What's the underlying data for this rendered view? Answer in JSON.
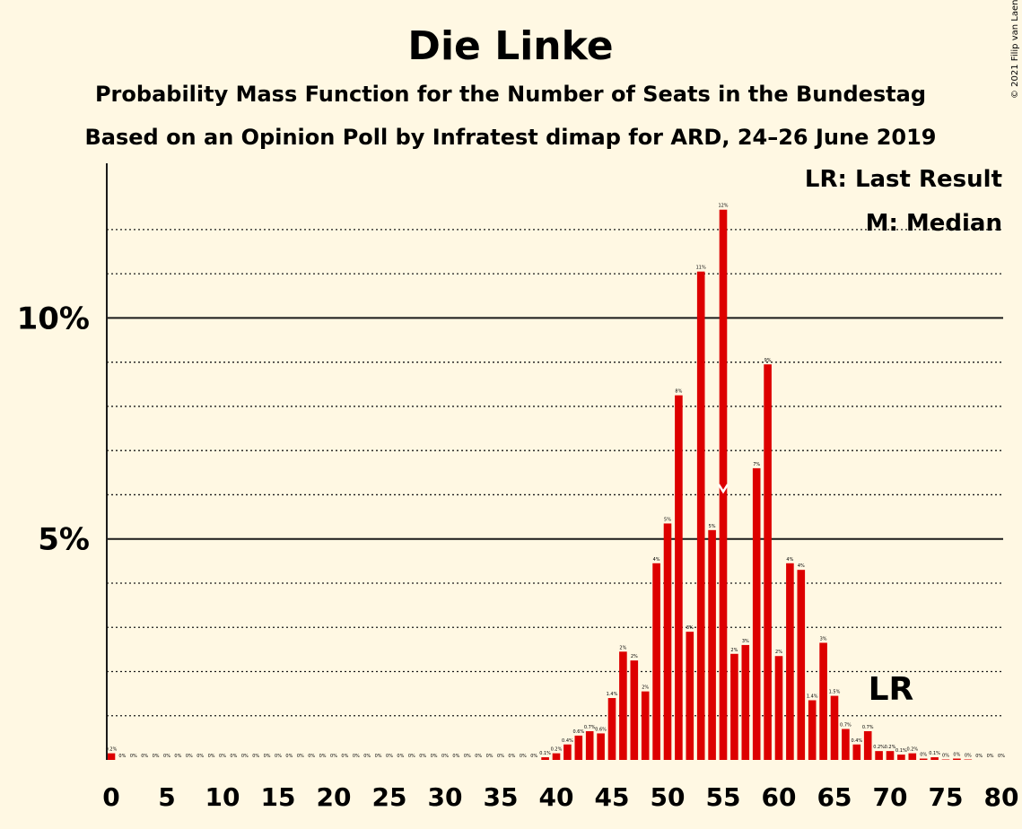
{
  "chart_data": {
    "type": "bar",
    "title": "Die Linke",
    "subtitle": "Probability Mass Function for the Number of Seats in the Bundestag",
    "subtitle2": "Based on an Opinion Poll by Infratest dimap for ARD, 24–26 June 2019",
    "copyright": "© 2021 Filip van Laenen",
    "legend": [
      "LR: Last Result",
      "M: Median"
    ],
    "legend_placement": "top-right",
    "ylim": [
      0,
      13.5
    ],
    "yticks": [
      {
        "value": 5,
        "label": "5%"
      },
      {
        "value": 10,
        "label": "10%"
      }
    ],
    "xticks": [
      0,
      5,
      10,
      15,
      20,
      25,
      30,
      35,
      40,
      45,
      50,
      55,
      60,
      65,
      70,
      75,
      80
    ],
    "grid": "dotted every 1%, solid at 5% and 10%",
    "bar_color": "#DD0000",
    "median_seat": 55,
    "last_result_seat": 69,
    "last_result_label": "LR",
    "x": [
      0,
      1,
      2,
      3,
      4,
      5,
      6,
      7,
      8,
      9,
      10,
      11,
      12,
      13,
      14,
      15,
      16,
      17,
      18,
      19,
      20,
      21,
      22,
      23,
      24,
      25,
      26,
      27,
      28,
      29,
      30,
      31,
      32,
      33,
      34,
      35,
      36,
      37,
      38,
      39,
      40,
      41,
      42,
      43,
      44,
      45,
      46,
      47,
      48,
      49,
      50,
      51,
      52,
      53,
      54,
      55,
      56,
      57,
      58,
      59,
      60,
      61,
      62,
      63,
      64,
      65,
      66,
      67,
      68,
      69,
      70,
      71,
      72,
      73,
      74,
      75,
      76,
      77,
      78,
      79,
      80
    ],
    "values": [
      0.15,
      0,
      0,
      0,
      0,
      0,
      0,
      0,
      0,
      0,
      0,
      0,
      0,
      0,
      0,
      0,
      0,
      0,
      0,
      0,
      0,
      0,
      0,
      0,
      0,
      0,
      0,
      0,
      0,
      0,
      0,
      0,
      0,
      0,
      0,
      0,
      0,
      0,
      0,
      0.06,
      0.15,
      0.35,
      0.55,
      0.65,
      0.6,
      1.4,
      2.45,
      2.25,
      1.55,
      4.45,
      5.35,
      8.25,
      2.9,
      11.05,
      5.2,
      12.45,
      2.4,
      2.6,
      6.6,
      8.95,
      2.35,
      4.45,
      4.3,
      1.35,
      2.65,
      1.45,
      0.7,
      0.35,
      0.65,
      0.2,
      0.2,
      0.12,
      0.15,
      0.03,
      0.06,
      0.01,
      0.03,
      0.01,
      0,
      0,
      0
    ],
    "data_labels": [
      "0.2%",
      "0%",
      "0%",
      "0%",
      "0%",
      "0%",
      "0%",
      "0%",
      "0%",
      "0%",
      "0%",
      "0%",
      "0%",
      "0%",
      "0%",
      "0%",
      "0%",
      "0%",
      "0%",
      "0%",
      "0%",
      "0%",
      "0%",
      "0%",
      "0%",
      "0%",
      "0%",
      "0%",
      "0%",
      "0%",
      "0%",
      "0%",
      "0%",
      "0%",
      "0%",
      "0%",
      "0%",
      "0%",
      "0%",
      "0.1%",
      "0.2%",
      "0.4%",
      "0.6%",
      "0.7%",
      "0.6%",
      "1.4%",
      "2%",
      "2%",
      "2%",
      "4%",
      "5%",
      "8%",
      "3%",
      "11%",
      "5%",
      "12%",
      "2%",
      "3%",
      "7%",
      "9%",
      "2%",
      "4%",
      "4%",
      "1.4%",
      "3%",
      "1.5%",
      "0.7%",
      "0.4%",
      "0.7%",
      "0.2%",
      "0.2%",
      "0.1%",
      "0.2%",
      "0%",
      "0.1%",
      "0%",
      "0%",
      "0%",
      "0%",
      "0%",
      "0%"
    ]
  }
}
